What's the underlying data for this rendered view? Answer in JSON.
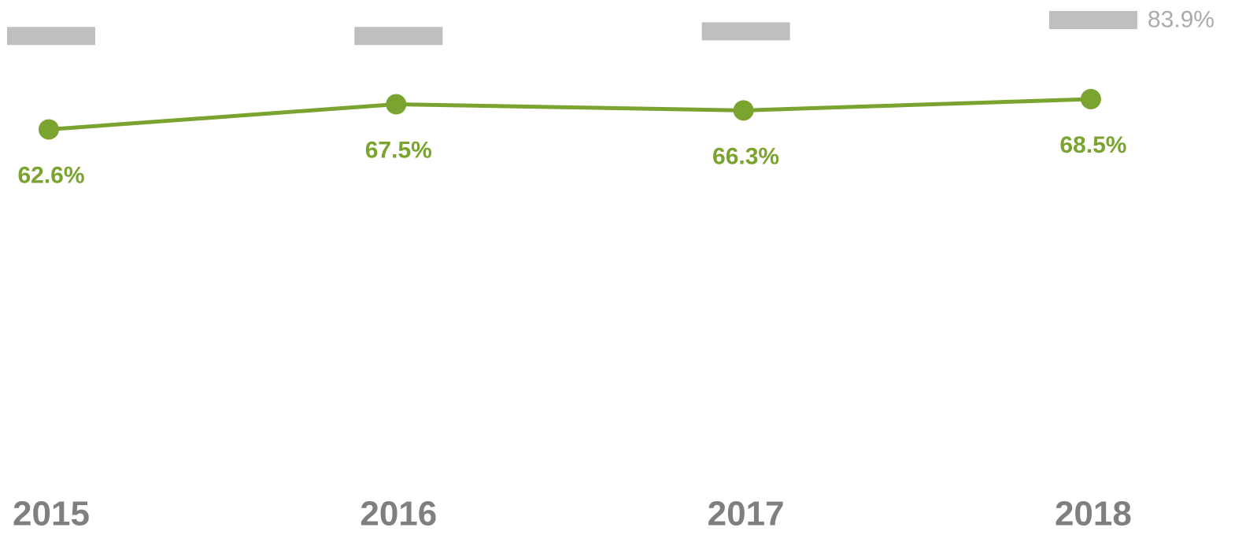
{
  "chart_data": {
    "type": "line",
    "categories": [
      "2015",
      "2016",
      "2017",
      "2018"
    ],
    "series": [
      {
        "color": "#7aa42f",
        "values": [
          62.6,
          67.5,
          66.3,
          68.5
        ],
        "value_labels": [
          "62.6%",
          "67.5%",
          "66.3%",
          "68.5%"
        ]
      },
      {
        "color": "#bfbfbf",
        "marker": "dash",
        "values": [
          80.8,
          80.8,
          81.7,
          83.9
        ],
        "value_labels": [
          null,
          null,
          null,
          "83.9%"
        ]
      }
    ],
    "ylim": [
      0,
      87.5
    ],
    "grid": false
  }
}
